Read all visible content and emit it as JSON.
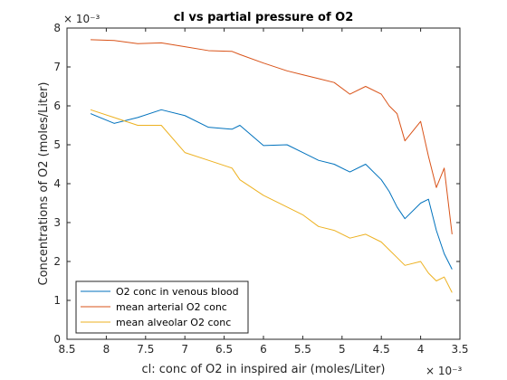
{
  "chart_data": {
    "type": "line",
    "title": "cl vs partial pressure of O2",
    "xlabel": "cl: conc of O2 in inspired air (moles/Liter)",
    "ylabel": "Concentrations of O2 (moles/Liter)",
    "x_exponent_label": "× 10⁻³",
    "y_exponent_label": "× 10⁻³",
    "xlim": [
      0.0035,
      0.0085
    ],
    "ylim": [
      0,
      0.008
    ],
    "x_reversed": true,
    "grid": false,
    "legend_position": "bottom-left",
    "x_ticks": [
      0.0085,
      0.008,
      0.0075,
      0.007,
      0.0065,
      0.006,
      0.0055,
      0.005,
      0.0045,
      0.004,
      0.0035
    ],
    "x_tick_labels": [
      "8.5",
      "8",
      "7.5",
      "7",
      "6.5",
      "6",
      "5.5",
      "5",
      "4.5",
      "4",
      "3.5"
    ],
    "y_ticks": [
      0,
      0.001,
      0.002,
      0.003,
      0.004,
      0.005,
      0.006,
      0.007,
      0.008
    ],
    "y_tick_labels": [
      "0",
      "1",
      "2",
      "3",
      "4",
      "5",
      "6",
      "7",
      "8"
    ],
    "x": [
      0.0082,
      0.0079,
      0.0076,
      0.0073,
      0.007,
      0.0067,
      0.0064,
      0.0063,
      0.006,
      0.0057,
      0.0055,
      0.0053,
      0.0051,
      0.0049,
      0.0047,
      0.0045,
      0.0044,
      0.0043,
      0.0042,
      0.004,
      0.0039,
      0.0038,
      0.0037,
      0.0036
    ],
    "series": [
      {
        "name": "O2 conc in venous blood",
        "color": "#0072BD",
        "values": [
          0.0058,
          0.00555,
          0.0057,
          0.0059,
          0.00575,
          0.00545,
          0.0054,
          0.0055,
          0.00498,
          0.005,
          0.0048,
          0.0046,
          0.0045,
          0.0043,
          0.0045,
          0.0041,
          0.0038,
          0.0034,
          0.0031,
          0.0035,
          0.0036,
          0.0028,
          0.0022,
          0.0018
        ]
      },
      {
        "name": "mean arterial O2 conc",
        "color": "#D95319",
        "values": [
          0.0077,
          0.00768,
          0.0076,
          0.00762,
          0.00752,
          0.00742,
          0.0074,
          0.00732,
          0.0071,
          0.0069,
          0.0068,
          0.0067,
          0.0066,
          0.0063,
          0.0065,
          0.0063,
          0.006,
          0.0058,
          0.0051,
          0.0056,
          0.0047,
          0.0039,
          0.0044,
          0.0027
        ]
      },
      {
        "name": "mean alveolar O2 conc",
        "color": "#EDB120",
        "values": [
          0.0059,
          0.0057,
          0.0055,
          0.0055,
          0.0048,
          0.0046,
          0.0044,
          0.0041,
          0.0037,
          0.0034,
          0.0032,
          0.0029,
          0.0028,
          0.0026,
          0.0027,
          0.0025,
          0.0023,
          0.0021,
          0.0019,
          0.002,
          0.0017,
          0.0015,
          0.0016,
          0.0012
        ]
      }
    ]
  }
}
